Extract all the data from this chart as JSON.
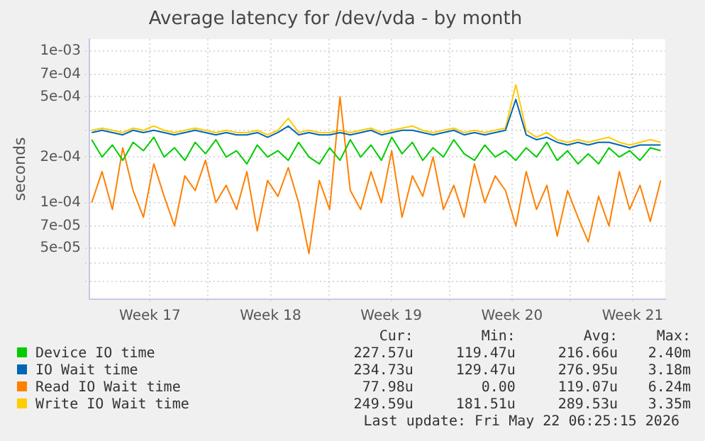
{
  "chart_data": {
    "type": "line",
    "title": "Average latency for /dev/vda - by month",
    "ylabel": "seconds",
    "x": [
      "2026-04-19T00:00",
      "2026-04-19T14:24",
      "2026-04-20T04:48",
      "2026-04-20T19:12",
      "2026-04-21T09:36",
      "2026-04-22T00:00",
      "2026-04-22T14:24",
      "2026-04-23T04:48",
      "2026-04-23T19:12",
      "2026-04-24T09:36",
      "2026-04-25T00:00",
      "2026-04-25T14:24",
      "2026-04-26T04:48",
      "2026-04-26T19:12",
      "2026-04-27T09:36",
      "2026-04-28T00:00",
      "2026-04-28T14:24",
      "2026-04-29T04:48",
      "2026-04-29T19:12",
      "2026-04-30T09:36",
      "2026-05-01T00:00",
      "2026-05-01T14:24",
      "2026-05-02T04:48",
      "2026-05-02T19:12",
      "2026-05-03T09:36",
      "2026-05-04T00:00",
      "2026-05-04T14:24",
      "2026-05-05T04:48",
      "2026-05-05T19:12",
      "2026-05-06T09:36",
      "2026-05-07T00:00",
      "2026-05-07T14:24",
      "2026-05-08T04:48",
      "2026-05-08T19:12",
      "2026-05-09T09:36",
      "2026-05-10T00:00",
      "2026-05-10T14:24",
      "2026-05-11T04:48",
      "2026-05-11T19:12",
      "2026-05-12T09:36",
      "2026-05-13T00:00",
      "2026-05-13T14:24",
      "2026-05-14T04:48",
      "2026-05-14T19:12",
      "2026-05-15T09:36",
      "2026-05-16T00:00",
      "2026-05-16T14:24",
      "2026-05-17T04:48",
      "2026-05-17T19:12",
      "2026-05-18T09:36",
      "2026-05-19T00:00",
      "2026-05-19T14:24",
      "2026-05-20T04:48",
      "2026-05-20T19:12",
      "2026-05-21T09:36",
      "2026-05-22T00:00"
    ],
    "series": [
      {
        "name": "Device IO time",
        "color": "#00cc00",
        "values": [
          0.00026,
          0.0002,
          0.00024,
          0.00019,
          0.00025,
          0.00022,
          0.00027,
          0.0002,
          0.00023,
          0.00019,
          0.00025,
          0.00021,
          0.00026,
          0.0002,
          0.00022,
          0.00018,
          0.00024,
          0.0002,
          0.00022,
          0.00019,
          0.00025,
          0.0002,
          0.00018,
          0.00023,
          0.00019,
          0.00026,
          0.0002,
          0.00024,
          0.00019,
          0.00027,
          0.00021,
          0.00025,
          0.00019,
          0.00023,
          0.0002,
          0.00026,
          0.00021,
          0.00019,
          0.00024,
          0.0002,
          0.00022,
          0.00019,
          0.00023,
          0.0002,
          0.00025,
          0.00019,
          0.00022,
          0.00018,
          0.00021,
          0.00018,
          0.00023,
          0.0002,
          0.00022,
          0.00019,
          0.00023,
          0.00022
        ]
      },
      {
        "name": "IO Wait time",
        "color": "#0066b3",
        "values": [
          0.00029,
          0.0003,
          0.00029,
          0.00028,
          0.0003,
          0.00029,
          0.0003,
          0.00029,
          0.00028,
          0.00029,
          0.0003,
          0.00029,
          0.00028,
          0.00029,
          0.00028,
          0.00028,
          0.00029,
          0.00027,
          0.00029,
          0.00032,
          0.00028,
          0.00029,
          0.00028,
          0.00028,
          0.00029,
          0.00028,
          0.00029,
          0.0003,
          0.00028,
          0.00029,
          0.0003,
          0.0003,
          0.00029,
          0.00028,
          0.00029,
          0.0003,
          0.00028,
          0.00029,
          0.00028,
          0.00029,
          0.0003,
          0.00048,
          0.00028,
          0.00026,
          0.00027,
          0.00025,
          0.00024,
          0.00025,
          0.00024,
          0.00025,
          0.00025,
          0.00024,
          0.00023,
          0.00024,
          0.00024,
          0.00024
        ]
      },
      {
        "name": "Read IO Wait time",
        "color": "#ff8000",
        "values": [
          0.0001,
          0.00016,
          9e-05,
          0.00023,
          0.00012,
          8e-05,
          0.00018,
          0.00011,
          7e-05,
          0.00015,
          0.00012,
          0.00019,
          0.0001,
          0.00013,
          9e-05,
          0.00016,
          6.5e-05,
          0.00014,
          0.00011,
          0.00017,
          0.0001,
          4.6e-05,
          0.00014,
          9e-05,
          0.0005,
          0.00012,
          9e-05,
          0.00016,
          0.0001,
          0.00022,
          8e-05,
          0.00015,
          0.00011,
          0.0002,
          9e-05,
          0.00013,
          8e-05,
          0.00018,
          0.0001,
          0.00015,
          0.00012,
          7e-05,
          0.00016,
          9e-05,
          0.00013,
          6e-05,
          0.00012,
          8e-05,
          5.5e-05,
          0.00011,
          7e-05,
          0.00016,
          9e-05,
          0.00013,
          7.5e-05,
          0.00014
        ]
      },
      {
        "name": "Write IO Wait time",
        "color": "#ffcc00",
        "values": [
          0.0003,
          0.00031,
          0.0003,
          0.00029,
          0.00031,
          0.0003,
          0.00032,
          0.0003,
          0.00029,
          0.0003,
          0.00031,
          0.0003,
          0.00029,
          0.0003,
          0.00029,
          0.00029,
          0.0003,
          0.00028,
          0.0003,
          0.00036,
          0.00029,
          0.0003,
          0.00029,
          0.00029,
          0.0003,
          0.00029,
          0.0003,
          0.00031,
          0.00029,
          0.0003,
          0.00031,
          0.00032,
          0.0003,
          0.00029,
          0.0003,
          0.00031,
          0.00029,
          0.0003,
          0.00029,
          0.0003,
          0.00031,
          0.0006,
          0.0003,
          0.00027,
          0.00029,
          0.00026,
          0.00025,
          0.00026,
          0.00025,
          0.00026,
          0.00027,
          0.00025,
          0.00024,
          0.00025,
          0.00026,
          0.00025
        ]
      }
    ],
    "xlim": [
      "2026-04-18T20:49",
      "2026-05-22T06:25"
    ],
    "xticks": [
      {
        "value": "2026-04-22T09:00",
        "label": "Week 17"
      },
      {
        "value": "2026-04-25T18:00",
        "label": null
      },
      {
        "value": "2026-04-29T09:00",
        "label": "Week 18"
      },
      {
        "value": "2026-05-02T18:00",
        "label": null
      },
      {
        "value": "2026-05-06T09:00",
        "label": "Week 19"
      },
      {
        "value": "2026-05-09T18:00",
        "label": null
      },
      {
        "value": "2026-05-13T09:00",
        "label": "Week 20"
      },
      {
        "value": "2026-05-16T18:00",
        "label": null
      },
      {
        "value": "2026-05-20T09:00",
        "label": "Week 21"
      }
    ],
    "ylim": [
      2.3e-05,
      0.0012
    ],
    "yticks": [
      {
        "value": 3e-05,
        "label": null
      },
      {
        "value": 4e-05,
        "label": null
      },
      {
        "value": 5e-05,
        "label": "5e-05"
      },
      {
        "value": 7e-05,
        "label": "7e-05"
      },
      {
        "value": 0.0001,
        "label": "1e-04"
      },
      {
        "value": 0.0002,
        "label": "2e-04"
      },
      {
        "value": 0.0003,
        "label": null
      },
      {
        "value": 0.0004,
        "label": null
      },
      {
        "value": 0.0005,
        "label": "5e-04"
      },
      {
        "value": 0.0007,
        "label": "7e-04"
      },
      {
        "value": 0.001,
        "label": "1e-03"
      }
    ],
    "log": "y",
    "grid": true,
    "legend": "bottom",
    "marker": "none",
    "line_style": "solid",
    "annotations": [
      "Cur:",
      "Min:",
      "Avg:",
      "Max:",
      "227.57u",
      "119.47u",
      "216.66u",
      "2.40m",
      "234.73u",
      "129.47u",
      "276.95u",
      "3.18m",
      "77.98u",
      "0.00",
      "119.07u",
      "6.24m",
      "249.59u",
      "181.51u",
      "289.53u",
      "3.35m",
      "Last update: Fri May 22 06:25:15 2026"
    ]
  }
}
